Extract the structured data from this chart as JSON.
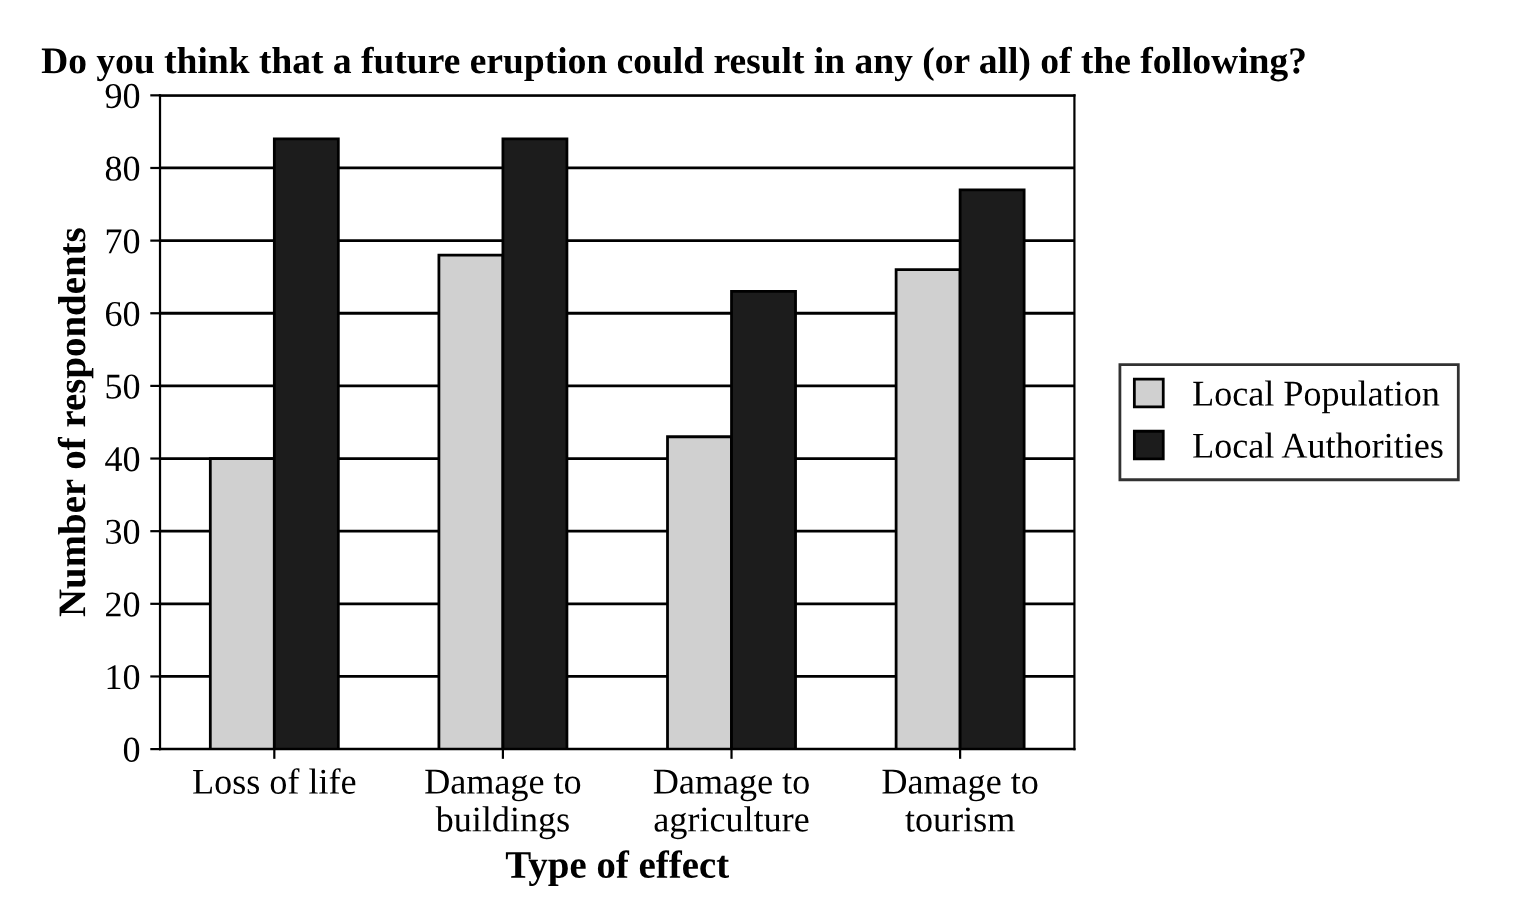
{
  "chart_data": {
    "type": "bar",
    "title": "Do you think that a future eruption could result in any (or all) of the following?",
    "xlabel": "Type of effect",
    "ylabel": "Number of respondents",
    "categories": [
      "Loss of life",
      "Damage to\nbuildings",
      "Damage to\nagriculture",
      "Damage to\ntourism"
    ],
    "series": [
      {
        "name": "Local Population",
        "color": "#d0d0d0",
        "values": [
          40,
          68,
          43,
          66
        ]
      },
      {
        "name": "Local Authorities",
        "color": "#1c1c1c",
        "values": [
          84,
          84,
          63,
          77
        ]
      }
    ],
    "ylim": [
      0,
      90
    ],
    "yticks": [
      0,
      10,
      20,
      30,
      40,
      50,
      60,
      70,
      80,
      90
    ],
    "grid": "y",
    "legend": "right"
  }
}
